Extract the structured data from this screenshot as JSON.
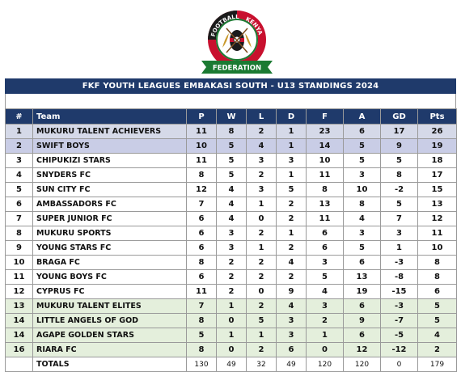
{
  "logo": {
    "top_text": "FOOTBALL",
    "right_text": "KENYA",
    "ribbon_text": "FEDERATION"
  },
  "title": "FKF YOUTH LEAGUES EMBAKASI SOUTH - U13 STANDINGS 2024",
  "headers": [
    "#",
    "Team",
    "P",
    "W",
    "L",
    "D",
    "F",
    "A",
    "GD",
    "Pts"
  ],
  "rows": [
    {
      "pos": "1",
      "team": "MUKURU TALENT ACHIEVERS",
      "p": "11",
      "w": "8",
      "l": "2",
      "d": "1",
      "f": "23",
      "a": "6",
      "gd": "17",
      "pts": "26"
    },
    {
      "pos": "2",
      "team": "SWIFT BOYS",
      "p": "10",
      "w": "5",
      "l": "4",
      "d": "1",
      "f": "14",
      "a": "5",
      "gd": "9",
      "pts": "19"
    },
    {
      "pos": "3",
      "team": "CHIPUKIZI STARS",
      "p": "11",
      "w": "5",
      "l": "3",
      "d": "3",
      "f": "10",
      "a": "5",
      "gd": "5",
      "pts": "18"
    },
    {
      "pos": "4",
      "team": "SNYDERS FC",
      "p": "8",
      "w": "5",
      "l": "2",
      "d": "1",
      "f": "11",
      "a": "3",
      "gd": "8",
      "pts": "17"
    },
    {
      "pos": "5",
      "team": "SUN CITY FC",
      "p": "12",
      "w": "4",
      "l": "3",
      "d": "5",
      "f": "8",
      "a": "10",
      "gd": "-2",
      "pts": "15"
    },
    {
      "pos": "6",
      "team": "AMBASSADORS FC",
      "p": "7",
      "w": "4",
      "l": "1",
      "d": "2",
      "f": "13",
      "a": "8",
      "gd": "5",
      "pts": "13"
    },
    {
      "pos": "7",
      "team": "SUPER JUNIOR FC",
      "p": "6",
      "w": "4",
      "l": "0",
      "d": "2",
      "f": "11",
      "a": "4",
      "gd": "7",
      "pts": "12"
    },
    {
      "pos": "8",
      "team": "MUKURU SPORTS",
      "p": "6",
      "w": "3",
      "l": "2",
      "d": "1",
      "f": "6",
      "a": "3",
      "gd": "3",
      "pts": "11"
    },
    {
      "pos": "9",
      "team": "YOUNG STARS FC",
      "p": "6",
      "w": "3",
      "l": "1",
      "d": "2",
      "f": "6",
      "a": "5",
      "gd": "1",
      "pts": "10"
    },
    {
      "pos": "10",
      "team": "BRAGA FC",
      "p": "8",
      "w": "2",
      "l": "2",
      "d": "4",
      "f": "3",
      "a": "6",
      "gd": "-3",
      "pts": "8"
    },
    {
      "pos": "11",
      "team": "YOUNG BOYS FC",
      "p": "6",
      "w": "2",
      "l": "2",
      "d": "2",
      "f": "5",
      "a": "13",
      "gd": "-8",
      "pts": "8"
    },
    {
      "pos": "12",
      "team": "CYPRUS FC",
      "p": "11",
      "w": "2",
      "l": "0",
      "d": "9",
      "f": "4",
      "a": "19",
      "gd": "-15",
      "pts": "6"
    },
    {
      "pos": "13",
      "team": "MUKURU TALENT ELITES",
      "p": "7",
      "w": "1",
      "l": "2",
      "d": "4",
      "f": "3",
      "a": "6",
      "gd": "-3",
      "pts": "5"
    },
    {
      "pos": "14",
      "team": "LITTLE ANGELS OF GOD",
      "p": "8",
      "w": "0",
      "l": "5",
      "d": "3",
      "f": "2",
      "a": "9",
      "gd": "-7",
      "pts": "5"
    },
    {
      "pos": "14",
      "team": "AGAPE GOLDEN STARS",
      "p": "5",
      "w": "1",
      "l": "1",
      "d": "3",
      "f": "1",
      "a": "6",
      "gd": "-5",
      "pts": "4"
    },
    {
      "pos": "16",
      "team": "RIARA FC",
      "p": "8",
      "w": "0",
      "l": "2",
      "d": "6",
      "f": "0",
      "a": "12",
      "gd": "-12",
      "pts": "2"
    }
  ],
  "totals": {
    "label": "TOTALS",
    "p": "130",
    "w": "49",
    "l": "32",
    "d": "49",
    "f": "120",
    "a": "120",
    "gd": "0",
    "pts": "179"
  },
  "colors": {
    "header_bg": "#1f3a6b",
    "header_text": "#ffffff",
    "top_band": "#d5d9e8",
    "second_band": "#c9cde6",
    "bottom_band": "#e4efdc",
    "grid": "#9a9a9a"
  }
}
